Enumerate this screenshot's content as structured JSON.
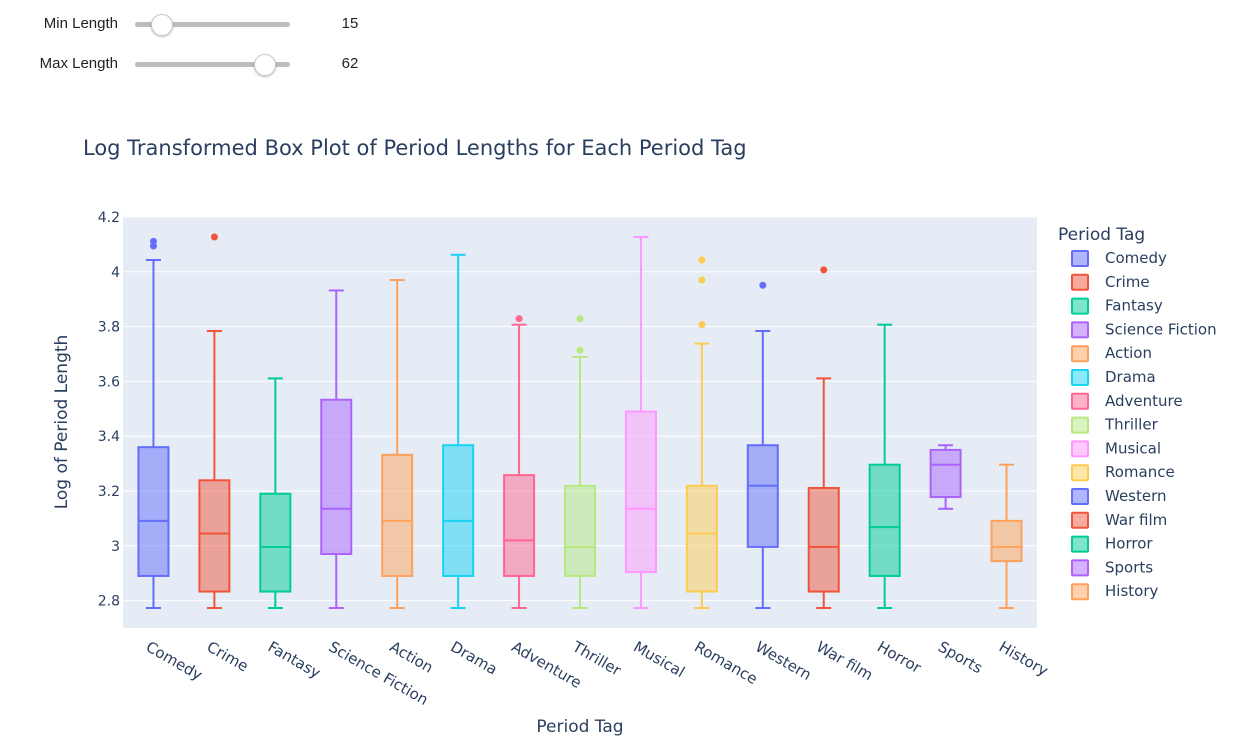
{
  "controls": {
    "min_length": {
      "label": "Min Length",
      "value": "15",
      "fraction": 0.17
    },
    "max_length": {
      "label": "Max Length",
      "value": "62",
      "fraction": 0.83
    }
  },
  "chart_data": {
    "type": "box",
    "title": "Log Transformed Box Plot of Period Lengths for Each Period Tag",
    "xlabel": "Period Tag",
    "ylabel": "Log of Period Length",
    "ylim": [
      2.7,
      4.2
    ],
    "yticks": [
      2.8,
      3,
      3.2,
      3.4,
      3.6,
      3.8,
      4,
      4.2
    ],
    "ytick_labels": [
      "2.8",
      "3",
      "3.2",
      "3.4",
      "3.6",
      "3.8",
      "4",
      "4.2"
    ],
    "grid": true,
    "legend_title": "Period Tag",
    "legend_position": "right",
    "series": [
      {
        "name": "Comedy",
        "color": "#636efa",
        "min": 2.773,
        "q1": 2.89,
        "median": 3.091,
        "q3": 3.36,
        "max": 4.043,
        "outliers": [
          4.094,
          4.111
        ]
      },
      {
        "name": "Crime",
        "color": "#EF553B",
        "min": 2.773,
        "q1": 2.833,
        "median": 3.045,
        "q3": 3.239,
        "max": 3.784,
        "outliers": [
          4.127
        ]
      },
      {
        "name": "Fantasy",
        "color": "#00cc96",
        "min": 2.773,
        "q1": 2.833,
        "median": 2.996,
        "q3": 3.19,
        "max": 3.611,
        "outliers": []
      },
      {
        "name": "Science Fiction",
        "color": "#ab63fa",
        "min": 2.773,
        "q1": 2.97,
        "median": 3.135,
        "q3": 3.533,
        "max": 3.932,
        "outliers": []
      },
      {
        "name": "Action",
        "color": "#FFA15A",
        "min": 2.773,
        "q1": 2.89,
        "median": 3.091,
        "q3": 3.332,
        "max": 3.97,
        "outliers": []
      },
      {
        "name": "Drama",
        "color": "#19d3f3",
        "min": 2.773,
        "q1": 2.89,
        "median": 3.091,
        "q3": 3.367,
        "max": 4.062,
        "outliers": []
      },
      {
        "name": "Adventure",
        "color": "#FF6692",
        "min": 2.773,
        "q1": 2.89,
        "median": 3.02,
        "q3": 3.258,
        "max": 3.807,
        "outliers": [
          3.829
        ]
      },
      {
        "name": "Thriller",
        "color": "#B6E880",
        "min": 2.773,
        "q1": 2.89,
        "median": 2.996,
        "q3": 3.219,
        "max": 3.689,
        "outliers": [
          3.714,
          3.829
        ]
      },
      {
        "name": "Musical",
        "color": "#FF97FF",
        "min": 2.773,
        "q1": 2.904,
        "median": 3.135,
        "q3": 3.49,
        "max": 4.127,
        "outliers": []
      },
      {
        "name": "Romance",
        "color": "#FECB52",
        "min": 2.773,
        "q1": 2.833,
        "median": 3.045,
        "q3": 3.219,
        "max": 3.738,
        "outliers": [
          3.807,
          3.97,
          4.043
        ]
      },
      {
        "name": "Western",
        "color": "#636efa",
        "min": 2.773,
        "q1": 2.996,
        "median": 3.219,
        "q3": 3.367,
        "max": 3.784,
        "outliers": [
          3.951
        ]
      },
      {
        "name": "War film",
        "color": "#EF553B",
        "min": 2.773,
        "q1": 2.833,
        "median": 2.996,
        "q3": 3.211,
        "max": 3.611,
        "outliers": [
          4.007
        ]
      },
      {
        "name": "Horror",
        "color": "#00cc96",
        "min": 2.773,
        "q1": 2.89,
        "median": 3.068,
        "q3": 3.296,
        "max": 3.807,
        "outliers": []
      },
      {
        "name": "Sports",
        "color": "#ab63fa",
        "min": 3.135,
        "q1": 3.178,
        "median": 3.296,
        "q3": 3.35,
        "max": 3.367,
        "outliers": []
      },
      {
        "name": "History",
        "color": "#FFA15A",
        "min": 2.773,
        "q1": 2.944,
        "median": 2.996,
        "q3": 3.091,
        "max": 3.296,
        "outliers": []
      }
    ]
  }
}
